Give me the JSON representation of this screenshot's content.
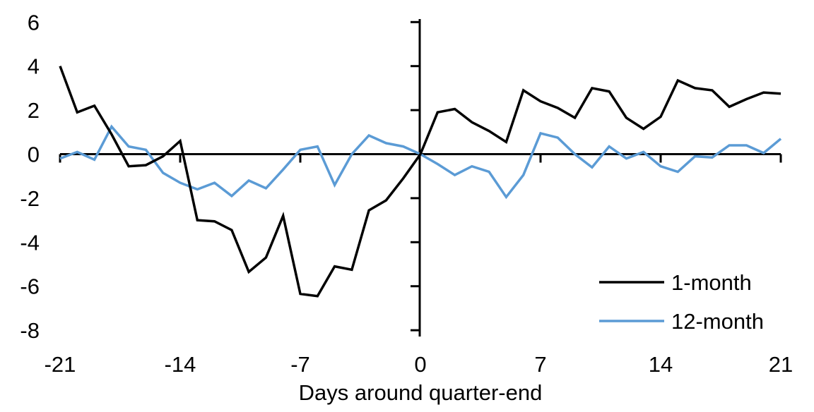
{
  "chart_data": {
    "type": "line",
    "title": "",
    "xlabel": "Days around quarter-end",
    "ylabel": "",
    "xlim": [
      -21,
      21
    ],
    "ylim": [
      -8,
      6
    ],
    "x_ticks": [
      -21,
      -14,
      -7,
      0,
      7,
      14,
      21
    ],
    "y_ticks": [
      6,
      4,
      2,
      0,
      -2,
      -4,
      -6,
      -8
    ],
    "grid": false,
    "legend_position": "lower right",
    "x": [
      -21,
      -20,
      -19,
      -18,
      -17,
      -16,
      -15,
      -14,
      -13,
      -12,
      -11,
      -10,
      -9,
      -8,
      -7,
      -6,
      -5,
      -4,
      -3,
      -2,
      -1,
      0,
      1,
      2,
      3,
      4,
      5,
      6,
      7,
      8,
      9,
      10,
      11,
      12,
      13,
      14,
      15,
      16,
      17,
      18,
      19,
      20,
      21
    ],
    "series": [
      {
        "name": "1-month",
        "color": "#000000",
        "values": [
          4.0,
          1.9,
          2.2,
          0.9,
          -0.55,
          -0.5,
          -0.1,
          0.6,
          -3.0,
          -3.05,
          -3.45,
          -5.35,
          -4.7,
          -2.8,
          -6.35,
          -6.45,
          -5.1,
          -5.25,
          -2.55,
          -2.1,
          -1.1,
          0.0,
          1.9,
          2.05,
          1.45,
          1.05,
          0.55,
          2.9,
          2.4,
          2.1,
          1.65,
          3.0,
          2.85,
          1.65,
          1.15,
          1.7,
          3.35,
          3.0,
          2.9,
          2.15,
          2.5,
          2.8,
          2.75
        ]
      },
      {
        "name": "12-month",
        "color": "#5B9BD5",
        "values": [
          -0.2,
          0.1,
          -0.25,
          1.25,
          0.35,
          0.2,
          -0.85,
          -1.3,
          -1.6,
          -1.3,
          -1.9,
          -1.2,
          -1.55,
          -0.7,
          0.2,
          0.35,
          -1.4,
          0.0,
          0.85,
          0.5,
          0.35,
          0.0,
          -0.45,
          -0.95,
          -0.55,
          -0.8,
          -1.95,
          -0.95,
          0.95,
          0.75,
          0.0,
          -0.6,
          0.35,
          -0.2,
          0.1,
          -0.55,
          -0.8,
          -0.1,
          -0.15,
          0.4,
          0.4,
          0.05,
          0.7
        ]
      }
    ]
  }
}
